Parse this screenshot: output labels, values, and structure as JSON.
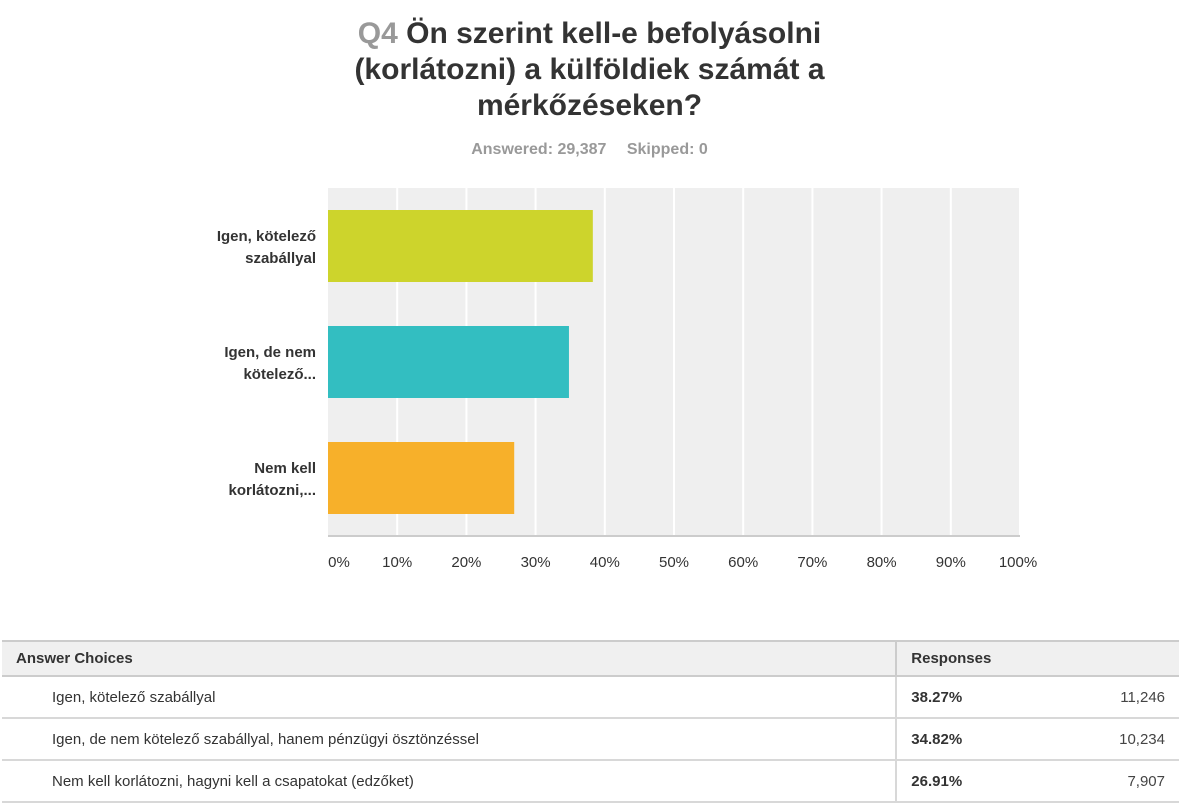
{
  "question": {
    "number": "Q4",
    "text": "Ön szerint kell-e befolyásolni (korlátozni) a külföldiek számát a mérkőzéseken?"
  },
  "stats": {
    "answered": "Answered: 29,387",
    "skipped": "Skipped: 0"
  },
  "chart_data": {
    "type": "bar",
    "orientation": "horizontal",
    "categories": [
      "Igen, kötelező szabállyal",
      "Igen, de nem kötelező...",
      "Nem kell korlátozni,..."
    ],
    "category_label_lines": [
      [
        "Igen, kötelező",
        "szabállyal"
      ],
      [
        "Igen, de nem",
        "kötelező..."
      ],
      [
        "Nem kell",
        "korlátozni,..."
      ]
    ],
    "values": [
      38.27,
      34.82,
      26.91
    ],
    "colors": [
      "#cdd42c",
      "#33bec1",
      "#f7b02a"
    ],
    "xlim": [
      0,
      100
    ],
    "xticks": [
      "0%",
      "10%",
      "20%",
      "30%",
      "40%",
      "50%",
      "60%",
      "70%",
      "80%",
      "90%",
      "100%"
    ],
    "grid": true,
    "plot_background": "#efefef"
  },
  "table": {
    "headers": {
      "choices": "Answer Choices",
      "responses": "Responses"
    },
    "rows": [
      {
        "choice": "Igen, kötelező szabállyal",
        "percent": "38.27%",
        "count": "11,246"
      },
      {
        "choice": "Igen, de nem kötelező szabállyal, hanem pénzügyi ösztönzéssel",
        "percent": "34.82%",
        "count": "10,234"
      },
      {
        "choice": "Nem kell korlátozni, hagyni kell a csapatokat (edzőket)",
        "percent": "26.91%",
        "count": "7,907"
      }
    ]
  }
}
